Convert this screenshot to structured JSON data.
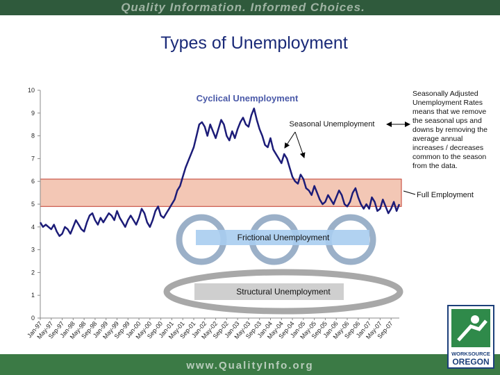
{
  "header": {
    "banner": "Quality Information. Informed Choices."
  },
  "title": "Types of Unemployment",
  "chart_data": {
    "type": "line",
    "title": "Cyclical Unemployment",
    "categories": [
      "Jan-97",
      null,
      null,
      null,
      "May-97",
      null,
      null,
      null,
      "Sep-97",
      null,
      null,
      null,
      "Jan-98",
      null,
      null,
      null,
      "May-98",
      null,
      null,
      null,
      "Sep-98",
      null,
      null,
      null,
      "Jan-99",
      null,
      null,
      null,
      "May-99",
      null,
      null,
      null,
      "Sep-99",
      null,
      null,
      null,
      "Jan-00",
      null,
      null,
      null,
      "May-00",
      null,
      null,
      null,
      "Sep-00",
      null,
      null,
      null,
      "Jan-01",
      null,
      null,
      null,
      "May-01",
      null,
      null,
      null,
      "Sep-01",
      null,
      null,
      null,
      "Jan-02",
      null,
      null,
      null,
      "May-02",
      null,
      null,
      null,
      "Sep-02",
      null,
      null,
      null,
      "Jan-03",
      null,
      null,
      null,
      "May-03",
      null,
      null,
      null,
      "Sep-03",
      null,
      null,
      null,
      "Jan-04",
      null,
      null,
      null,
      "May-04",
      null,
      null,
      null,
      "Sep-04",
      null,
      null,
      null,
      "Jan-05",
      null,
      null,
      null,
      "May-05",
      null,
      null,
      null,
      "Sep-05",
      null,
      null,
      null,
      "Jan-06",
      null,
      null,
      null,
      "May-06",
      null,
      null,
      null,
      "Sep-06",
      null,
      null,
      null,
      "Jan-07",
      null,
      null,
      null,
      "May-07",
      null,
      null,
      null,
      "Sep-07",
      null,
      null,
      null
    ],
    "series": [
      {
        "color": "#1c1c78",
        "values": [
          4.2,
          4.0,
          4.1,
          4.0,
          3.9,
          4.1,
          3.8,
          3.6,
          3.7,
          4.0,
          3.9,
          3.7,
          4.0,
          4.3,
          4.1,
          3.9,
          3.8,
          4.2,
          4.5,
          4.6,
          4.3,
          4.1,
          4.4,
          4.2,
          4.4,
          4.6,
          4.5,
          4.3,
          4.7,
          4.4,
          4.2,
          4.0,
          4.3,
          4.5,
          4.3,
          4.1,
          4.4,
          4.8,
          4.6,
          4.2,
          4.0,
          4.3,
          4.7,
          4.9,
          4.5,
          4.4,
          4.6,
          4.8,
          5.0,
          5.2,
          5.6,
          5.8,
          6.2,
          6.6,
          6.9,
          7.2,
          7.5,
          8.0,
          8.5,
          8.6,
          8.4,
          8.0,
          8.5,
          8.2,
          7.9,
          8.3,
          8.7,
          8.5,
          8.0,
          7.8,
          8.2,
          7.9,
          8.3,
          8.6,
          8.8,
          8.5,
          8.4,
          8.9,
          9.2,
          8.7,
          8.3,
          8.0,
          7.6,
          7.5,
          7.9,
          7.4,
          7.2,
          7.0,
          6.8,
          7.2,
          7.0,
          6.6,
          6.2,
          6.0,
          5.9,
          6.3,
          6.1,
          5.7,
          5.6,
          5.4,
          5.8,
          5.5,
          5.2,
          5.0,
          5.1,
          5.4,
          5.2,
          5.0,
          5.3,
          5.6,
          5.4,
          5.0,
          4.9,
          5.1,
          5.5,
          5.7,
          5.3,
          5.0,
          4.8,
          5.0,
          4.8,
          5.3,
          5.1,
          4.7,
          4.8,
          5.2,
          4.9,
          4.6,
          4.8,
          5.1,
          4.7,
          5.0
        ]
      }
    ],
    "ylim": [
      0,
      10
    ],
    "yticks": [
      0,
      1,
      2,
      3,
      4,
      5,
      6,
      7,
      8,
      9,
      10
    ],
    "band": {
      "label": "Full Employment",
      "range": [
        4.9,
        6.1
      ],
      "color": "#f3c7b5"
    },
    "annotations": {
      "seasonal": "Seasonal Unemployment",
      "frictional": "Frictional Unemployment",
      "structural": "Structural Unemployment"
    }
  },
  "note": "Seasonally Adjusted Unemployment Rates means that we remove the seasonal ups and downs by removing the average annual increases / decreases common to the season from the data.",
  "footer": {
    "url": "www.QualityInfo.org"
  },
  "logo": {
    "line1": "WORKSOURCE",
    "line2": "OREGON"
  }
}
